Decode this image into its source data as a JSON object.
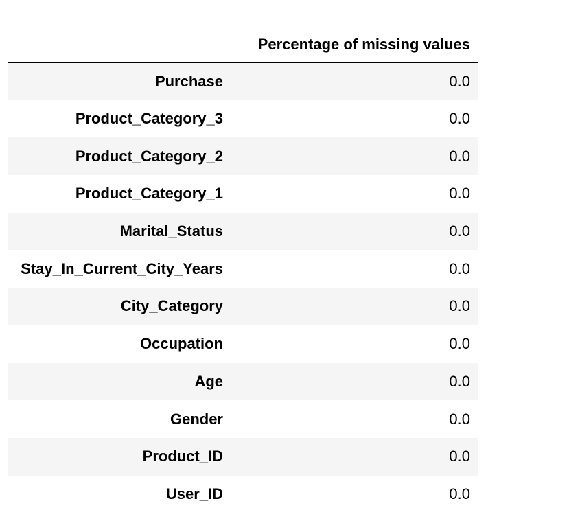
{
  "table": {
    "column_header": "Percentage of missing values",
    "rows": [
      {
        "index": "Purchase",
        "value": "0.0"
      },
      {
        "index": "Product_Category_3",
        "value": "0.0"
      },
      {
        "index": "Product_Category_2",
        "value": "0.0"
      },
      {
        "index": "Product_Category_1",
        "value": "0.0"
      },
      {
        "index": "Marital_Status",
        "value": "0.0"
      },
      {
        "index": "Stay_In_Current_City_Years",
        "value": "0.0"
      },
      {
        "index": "City_Category",
        "value": "0.0"
      },
      {
        "index": "Occupation",
        "value": "0.0"
      },
      {
        "index": "Age",
        "value": "0.0"
      },
      {
        "index": "Gender",
        "value": "0.0"
      },
      {
        "index": "Product_ID",
        "value": "0.0"
      },
      {
        "index": "User_ID",
        "value": "0.0"
      }
    ]
  },
  "colors": {
    "stripe": "#f5f5f5",
    "background": "#ffffff",
    "rule": "#000000"
  }
}
